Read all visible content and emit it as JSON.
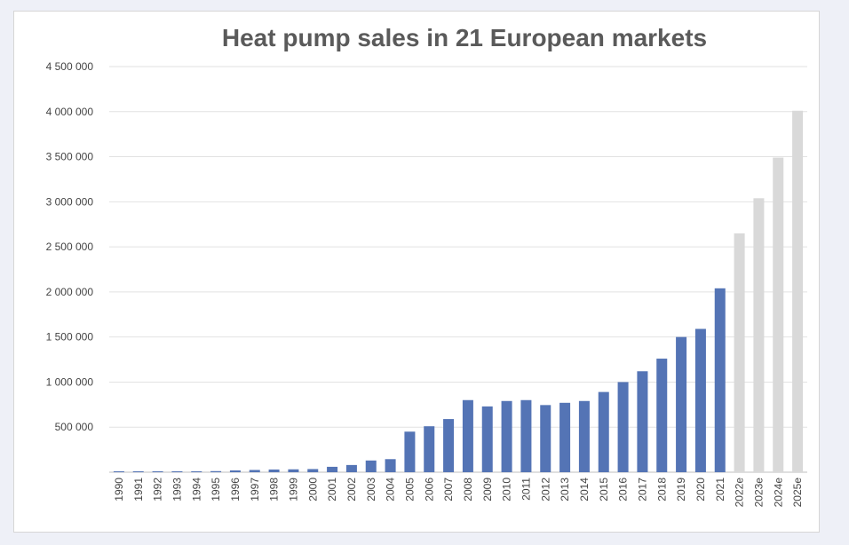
{
  "chart_data": {
    "type": "bar",
    "title": "Heat pump sales in 21 European markets",
    "xlabel": "",
    "ylabel": "",
    "ylim": [
      0,
      4500000
    ],
    "yticks": [
      {
        "value": 500000,
        "label": "500 000"
      },
      {
        "value": 1000000,
        "label": "1 000 000"
      },
      {
        "value": 1500000,
        "label": "1 500 000"
      },
      {
        "value": 2000000,
        "label": "2 000 000"
      },
      {
        "value": 2500000,
        "label": "2 500 000"
      },
      {
        "value": 3000000,
        "label": "3 000 000"
      },
      {
        "value": 3500000,
        "label": "3 500 000"
      },
      {
        "value": 4000000,
        "label": "4 000 000"
      },
      {
        "value": 4500000,
        "label": "4 500 000"
      }
    ],
    "grid": true,
    "categories": [
      "1990",
      "1991",
      "1992",
      "1993",
      "1994",
      "1995",
      "1996",
      "1997",
      "1998",
      "1999",
      "2000",
      "2001",
      "2002",
      "2003",
      "2004",
      "2005",
      "2006",
      "2007",
      "2008",
      "2009",
      "2010",
      "2011",
      "2012",
      "2013",
      "2014",
      "2015",
      "2016",
      "2017",
      "2018",
      "2019",
      "2020",
      "2021",
      "2022e",
      "2023e",
      "2024e",
      "2025e"
    ],
    "values": [
      10000,
      10000,
      10000,
      10000,
      10000,
      12000,
      20000,
      25000,
      30000,
      32000,
      35000,
      60000,
      80000,
      130000,
      145000,
      450000,
      510000,
      590000,
      800000,
      730000,
      790000,
      800000,
      745000,
      770000,
      790000,
      890000,
      1000000,
      1120000,
      1260000,
      1500000,
      1590000,
      2040000,
      2650000,
      3040000,
      3490000,
      4010000
    ],
    "series_kind": [
      "actual",
      "actual",
      "actual",
      "actual",
      "actual",
      "actual",
      "actual",
      "actual",
      "actual",
      "actual",
      "actual",
      "actual",
      "actual",
      "actual",
      "actual",
      "actual",
      "actual",
      "actual",
      "actual",
      "actual",
      "actual",
      "actual",
      "actual",
      "actual",
      "actual",
      "actual",
      "actual",
      "actual",
      "actual",
      "actual",
      "actual",
      "actual",
      "estimate",
      "estimate",
      "estimate",
      "estimate"
    ],
    "colors": {
      "actual": "#5474b5",
      "estimate": "#d9d9d9",
      "grid": "#e2e2e2",
      "axis": "#bfbfbf",
      "text": "#444444",
      "title": "#5a5a5a"
    }
  }
}
